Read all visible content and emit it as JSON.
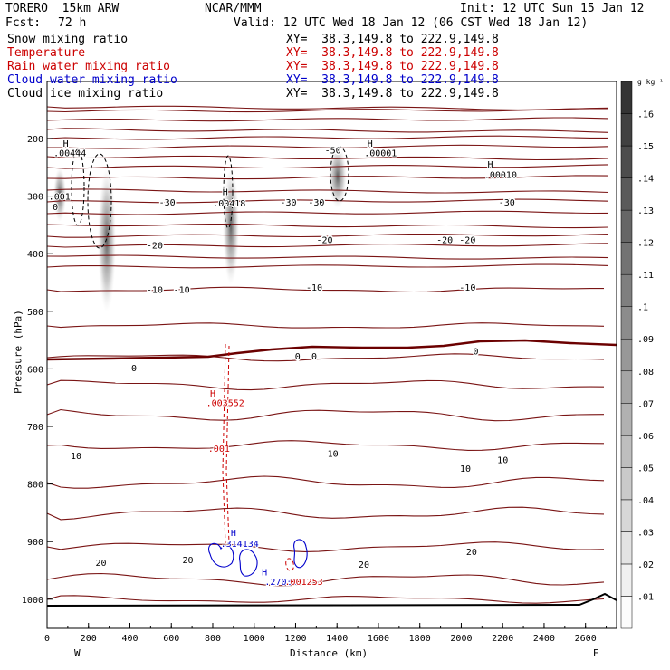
{
  "header": {
    "model": "TORERO  15km ARW",
    "org": "NCAR/MMM",
    "init": "Init: 12 UTC Sun 15 Jan 12",
    "fcst_label": "Fcst:",
    "fcst_value": "72 h",
    "valid": "Valid: 12 UTC Wed 18 Jan 12 (06 CST Wed 18 Jan 12)"
  },
  "legend": [
    {
      "name": "Snow mixing ratio",
      "xy": "XY=  38.3,149.8 to 222.9,149.8",
      "color": "#000000"
    },
    {
      "name": "Temperature",
      "xy": "XY=  38.3,149.8 to 222.9,149.8",
      "color": "#cc0000"
    },
    {
      "name": "Rain water mixing ratio",
      "xy": "XY=  38.3,149.8 to 222.9,149.8",
      "color": "#cc0000"
    },
    {
      "name": "Cloud water mixing ratio",
      "xy": "XY=  38.3,149.8 to 222.9,149.8",
      "color": "#0000cc"
    },
    {
      "name": "Cloud ice mixing ratio",
      "xy": "XY=  38.3,149.8 to 222.9,149.8",
      "color": "#000000"
    }
  ],
  "chart_data": {
    "type": "contour",
    "xlabel": "Distance (km)",
    "ylabel": "Pressure (hPa)",
    "xlim": [
      0,
      2750
    ],
    "ylim": [
      1000,
      100
    ],
    "x_ticks": [
      0,
      200,
      400,
      600,
      800,
      1000,
      1200,
      1400,
      1600,
      1800,
      2000,
      2200,
      2400,
      2600
    ],
    "y_ticks": [
      1000,
      900,
      800,
      700,
      600,
      500,
      400,
      300,
      200
    ],
    "west_label": "W",
    "east_label": "E",
    "colorbar": {
      "unit": "g kg⁻¹",
      "ticks": [
        ".01",
        ".02",
        ".03",
        ".04",
        ".05",
        ".06",
        ".07",
        ".08",
        ".09",
        ".1",
        ".11",
        ".12",
        ".13",
        ".14",
        ".15",
        ".16"
      ]
    },
    "temperature_labels": [
      {
        "text": "-30",
        "x": 580,
        "p": 310
      },
      {
        "text": "-30",
        "x": 1165,
        "p": 310
      },
      {
        "text": "-30",
        "x": 1300,
        "p": 310
      },
      {
        "text": "-30",
        "x": 2220,
        "p": 310
      },
      {
        "text": "-20",
        "x": 520,
        "p": 385
      },
      {
        "text": "-20",
        "x": 1340,
        "p": 375
      },
      {
        "text": "-20",
        "x": 1920,
        "p": 375
      },
      {
        "text": "-20",
        "x": 2030,
        "p": 375
      },
      {
        "text": "-10",
        "x": 520,
        "p": 462
      },
      {
        "text": "-10",
        "x": 650,
        "p": 462
      },
      {
        "text": "-10",
        "x": 1290,
        "p": 458
      },
      {
        "text": "-10",
        "x": 2030,
        "p": 458
      },
      {
        "text": "0",
        "x": 420,
        "p": 598
      },
      {
        "text": "0",
        "x": 1210,
        "p": 577
      },
      {
        "text": "0",
        "x": 1290,
        "p": 577
      },
      {
        "text": "0",
        "x": 2070,
        "p": 569
      },
      {
        "text": "10",
        "x": 140,
        "p": 750
      },
      {
        "text": "10",
        "x": 1380,
        "p": 746
      },
      {
        "text": "10",
        "x": 2200,
        "p": 757
      },
      {
        "text": "10",
        "x": 2020,
        "p": 772
      },
      {
        "text": "20",
        "x": 260,
        "p": 936
      },
      {
        "text": "20",
        "x": 680,
        "p": 931
      },
      {
        "text": "20",
        "x": 1530,
        "p": 939
      },
      {
        "text": "20",
        "x": 2050,
        "p": 917
      },
      {
        "text": "-50",
        "x": 1380,
        "p": 220
      }
    ],
    "max_labels": [
      {
        "text": "H",
        "x": 90,
        "p": 208,
        "color": "#000000"
      },
      {
        "text": ".00444",
        "x": 110,
        "p": 224,
        "color": "#000000"
      },
      {
        "text": ".001",
        "x": 60,
        "p": 300,
        "color": "#000000"
      },
      {
        "text": "0",
        "x": 40,
        "p": 318,
        "color": "#000000"
      },
      {
        "text": "H",
        "x": 860,
        "p": 292,
        "color": "#000000"
      },
      {
        "text": "H",
        "x": 1560,
        "p": 208,
        "color": "#000000"
      },
      {
        "text": ".00001",
        "x": 1610,
        "p": 224,
        "color": "#000000"
      },
      {
        "text": "H",
        "x": 2140,
        "p": 244,
        "color": "#000000"
      },
      {
        "text": "H",
        "x": 800,
        "p": 642,
        "color": "#cc0000"
      },
      {
        "text": ".001",
        "x": 830,
        "p": 738,
        "color": "#cc0000"
      },
      {
        "text": "H",
        "x": 900,
        "p": 884,
        "color": "#0000cc"
      },
      {
        "text": "H",
        "x": 1050,
        "p": 952,
        "color": "#0000cc"
      }
    ],
    "overlap_labels": [
      {
        "text": ".00418",
        "x": 880,
        "p": 312,
        "color": "#000000"
      },
      {
        "text": ".00010",
        "x": 2190,
        "p": 262,
        "color": "#000000"
      },
      {
        "text": ".003552",
        "x": 860,
        "p": 658,
        "color": "#cc0000"
      },
      {
        "text": ".314134",
        "x": 930,
        "p": 903,
        "color": "#0000cc"
      },
      {
        "text": ".27038",
        "x": 1130,
        "p": 969,
        "color": "#0000cc"
      },
      {
        "text": ".001253",
        "x": 1240,
        "p": 969,
        "color": "#cc0000"
      }
    ]
  }
}
